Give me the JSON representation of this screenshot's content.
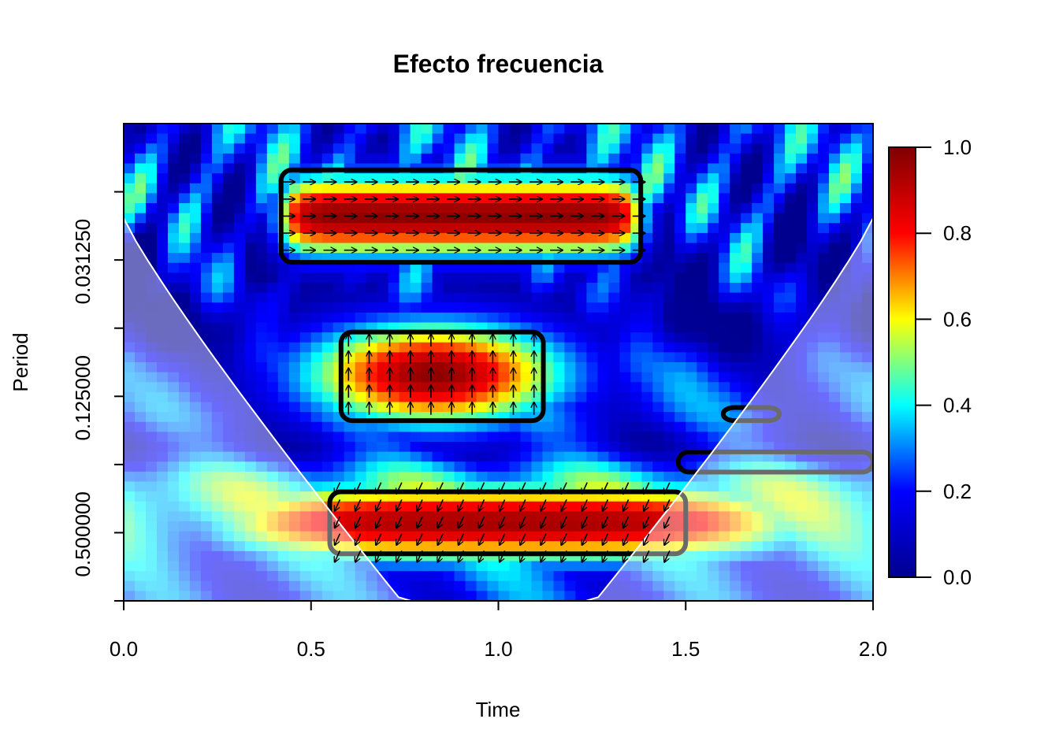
{
  "chart_data": {
    "type": "heatmap",
    "title": "Efecto frecuencia",
    "xlabel": "Time",
    "ylabel": "Period",
    "xlim": [
      0.0,
      2.0
    ],
    "x_ticks": [
      "0.0",
      "0.5",
      "1.0",
      "1.5",
      "2.0"
    ],
    "y_scale": "log2",
    "ylim": [
      0.0078125,
      1.0
    ],
    "y_tick_values": [
      0.015625,
      0.03125,
      0.0625,
      0.125,
      0.25,
      0.5,
      1.0
    ],
    "y_tick_labels": [
      "0.031250",
      "0.125000",
      "0.500000"
    ],
    "colorbar": {
      "range": [
        0.0,
        1.0
      ],
      "ticks": [
        "0.0",
        "0.2",
        "0.4",
        "0.6",
        "0.8",
        "1.0"
      ],
      "colormap": [
        "#00008f",
        "#0000ff",
        "#00ffff",
        "#ffff00",
        "#ff0000",
        "#800000"
      ]
    },
    "cone_of_influence": true,
    "significance_contours": true,
    "phase_arrows": true,
    "features": [
      {
        "period": 0.02,
        "t_range": [
          0.42,
          1.38
        ],
        "power": 0.95,
        "phase": "right"
      },
      {
        "period": 0.1,
        "t_range": [
          0.58,
          1.12
        ],
        "power": 0.97,
        "phase": "up"
      },
      {
        "period": 0.45,
        "t_range": [
          0.55,
          1.5
        ],
        "power": 0.92,
        "phase": "down-left"
      }
    ]
  }
}
